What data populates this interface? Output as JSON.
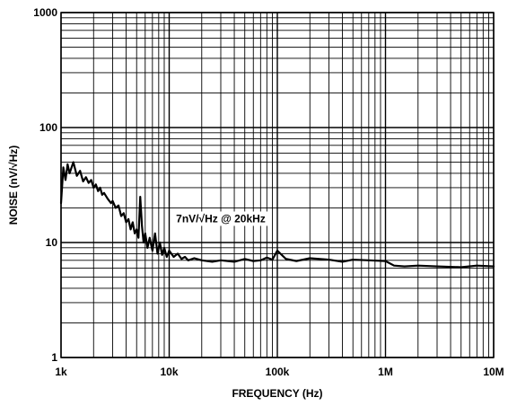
{
  "chart_data": {
    "type": "line",
    "xlabel": "FREQUENCY (Hz)",
    "ylabel": "NOISE (nV/√Hz)",
    "x_scale": "log",
    "y_scale": "log",
    "xlim": [
      1000,
      10000000
    ],
    "ylim": [
      1,
      1000
    ],
    "grid": true,
    "x_ticks": [
      {
        "value": 1000,
        "label": "1k"
      },
      {
        "value": 10000,
        "label": "10k"
      },
      {
        "value": 100000,
        "label": "100k"
      },
      {
        "value": 1000000,
        "label": "1M"
      },
      {
        "value": 10000000,
        "label": "10M"
      }
    ],
    "y_ticks": [
      {
        "value": 1,
        "label": "1"
      },
      {
        "value": 10,
        "label": "10"
      },
      {
        "value": 100,
        "label": "100"
      },
      {
        "value": 1000,
        "label": "1000"
      }
    ],
    "annotations": [
      {
        "text": "7nV/√Hz @ 20kHz",
        "x": 30000,
        "y": 15
      }
    ],
    "series": [
      {
        "color": "#000000",
        "x": [
          1000,
          1050,
          1100,
          1150,
          1200,
          1300,
          1400,
          1500,
          1600,
          1700,
          1800,
          1900,
          2000,
          2100,
          2200,
          2300,
          2400,
          2500,
          2700,
          2900,
          3000,
          3200,
          3400,
          3600,
          3800,
          4000,
          4200,
          4400,
          4600,
          4800,
          5000,
          5200,
          5400,
          5600,
          5800,
          6000,
          6300,
          6600,
          7000,
          7400,
          7800,
          8200,
          8600,
          9000,
          9500,
          10000,
          11000,
          12000,
          13000,
          14000,
          15000,
          17000,
          20000,
          25000,
          30000,
          40000,
          50000,
          60000,
          70000,
          80000,
          90000,
          100000,
          120000,
          150000,
          200000,
          300000,
          400000,
          500000,
          700000,
          1000000,
          1200000,
          1500000,
          2000000,
          3000000,
          5000000,
          7000000,
          10000000
        ],
        "y": [
          22,
          45,
          35,
          48,
          40,
          50,
          38,
          42,
          34,
          37,
          33,
          35,
          30,
          32,
          28,
          30,
          26,
          27,
          24,
          22,
          23,
          20,
          21,
          17,
          18,
          15,
          16,
          13,
          15,
          12,
          13,
          11,
          25,
          14,
          10,
          12,
          9,
          11,
          8.5,
          12,
          8,
          10,
          7.8,
          9,
          7.5,
          8.5,
          7.5,
          8,
          7.2,
          7.5,
          7,
          7.3,
          7,
          6.8,
          7,
          6.8,
          7.2,
          6.9,
          7,
          7.4,
          7.1,
          8.5,
          7.2,
          6.9,
          7.3,
          7.1,
          6.8,
          7.1,
          7,
          6.9,
          6.3,
          6.2,
          6.3,
          6.2,
          6.1,
          6.3,
          6.2
        ]
      }
    ]
  }
}
